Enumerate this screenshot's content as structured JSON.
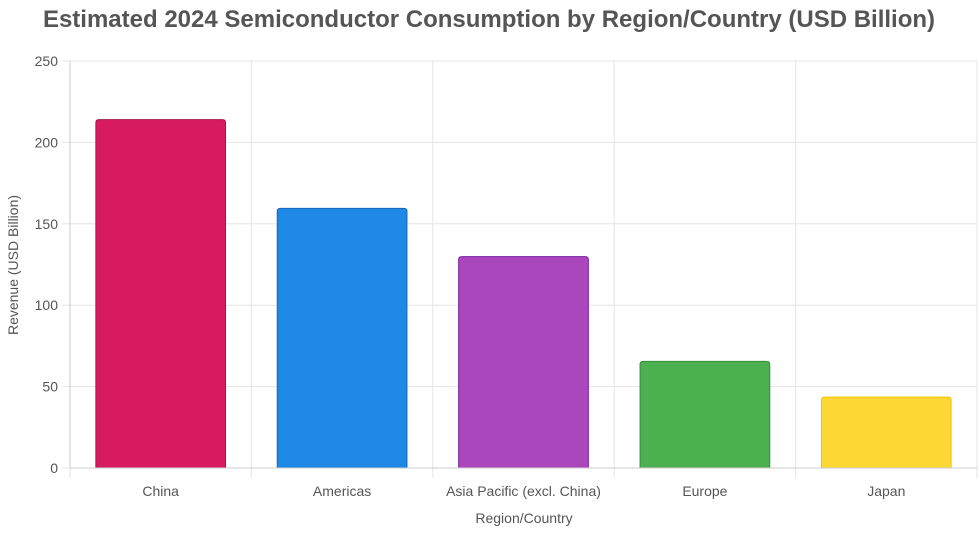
{
  "chart_data": {
    "type": "bar",
    "title": "Estimated 2024 Semiconductor Consumption by Region/Country (USD Billion)",
    "xlabel": "Region/Country",
    "ylabel": "Revenue (USD Billion)",
    "categories": [
      "China",
      "Americas",
      "Asia Pacific (excl. China)",
      "Europe",
      "Japan"
    ],
    "values": [
      214,
      159.5,
      129.8,
      65.5,
      43.5
    ],
    "colors": [
      "#D81B60",
      "#1E88E5",
      "#AB47BC",
      "#4CAF50",
      "#FDD835"
    ],
    "border_colors": [
      "#A8154A",
      "#1565C0",
      "#7B1FA2",
      "#388E3C",
      "#F9C000"
    ],
    "ylim": [
      0,
      250
    ],
    "yticks": [
      0,
      50,
      100,
      150,
      200,
      250
    ],
    "grid": true,
    "legend": "none"
  }
}
